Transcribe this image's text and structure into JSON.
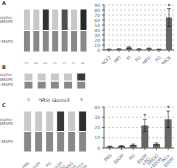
{
  "chart_data": [
    {
      "type": "heatmap",
      "title": "A",
      "categories": [
        "MCF2",
        "MFI",
        "FI",
        "FO",
        "MFO",
        "FO",
        "HMCE"
      ],
      "row_labels": [
        "Phospho-\np38MAPK",
        "p38 MAPK"
      ],
      "cells": [
        [
          200,
          200,
          50,
          200,
          80,
          200,
          40
        ],
        [
          136,
          136,
          136,
          136,
          136,
          136,
          136
        ]
      ]
    },
    {
      "type": "bar",
      "categories": [
        "MCF2",
        "MFI",
        "FI",
        "FO",
        "MFO",
        "FO",
        "HMCE"
      ],
      "values": [
        1.5,
        2,
        5,
        2,
        3,
        1.5,
        65
      ],
      "errors": [
        0.3,
        0.4,
        1.5,
        0.5,
        1,
        0.3,
        18
      ],
      "color": "#666666",
      "ylim": [
        0,
        90
      ],
      "yticks": [
        0,
        10,
        20,
        30,
        40,
        50,
        60,
        70,
        80,
        90
      ],
      "grid": true,
      "annotations": [
        {
          "text": "*",
          "category": "HMCE"
        }
      ]
    },
    {
      "type": "heatmap",
      "title": "B",
      "categories": [
        "0",
        "0.5",
        "1",
        "2",
        "5"
      ],
      "x_label": "EtSt (μg/mL)",
      "row_labels": [
        "Phospho-\np38MAPK",
        "p38 MAPK"
      ],
      "cells": [
        [
          200,
          200,
          200,
          200,
          55
        ],
        [
          136,
          136,
          136,
          136,
          136
        ]
      ]
    },
    {
      "type": "heatmap",
      "title": "C",
      "categories": [
        "PBS",
        "EtOH",
        "PO",
        "EtOH\n+PO",
        "DMSO\n+EtOH",
        "PO+\nEtOH"
      ],
      "row_labels": [
        "Phospho-\np38MAPK",
        "p38 MAPK"
      ],
      "cells": [
        [
          200,
          200,
          200,
          55,
          200,
          45
        ],
        [
          136,
          136,
          136,
          136,
          136,
          136
        ]
      ]
    },
    {
      "type": "bar",
      "categories": [
        "PBS",
        "EtOH",
        "PO",
        "EtOH\n+PO",
        "DMSO\n+EtOH",
        "PO+\nEtOH"
      ],
      "values": [
        1.5,
        2,
        3,
        22,
        4,
        28
      ],
      "errors": [
        0.3,
        0.4,
        0.8,
        6,
        1,
        8
      ],
      "color": "#666666",
      "ylim": [
        0,
        40
      ],
      "yticks": [
        0,
        10,
        20,
        30,
        40
      ],
      "grid": true,
      "annotations": [
        {
          "text": "*",
          "category": "EtOH\n+PO"
        },
        {
          "text": "*",
          "category": "PO+\nEtOH"
        }
      ]
    }
  ]
}
